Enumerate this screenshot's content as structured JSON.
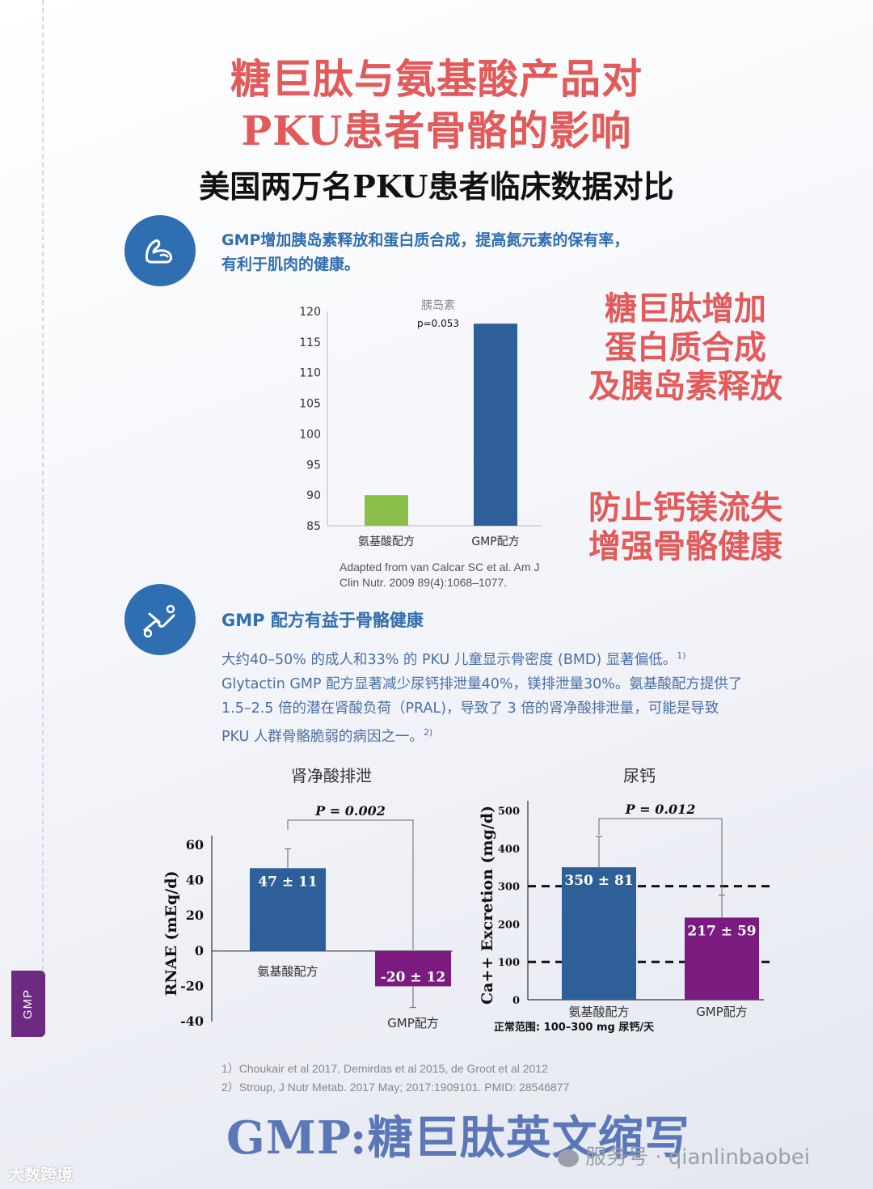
{
  "side_tab": {
    "label": "GMP"
  },
  "title": {
    "line1": "糖巨肽与氨基酸产品对",
    "line2": "PKU患者骨骼的影响"
  },
  "subtitle": "美国两万名PKU患者临床数据对比",
  "section1": {
    "icon": "muscle-arm-icon",
    "text_line1": "GMP增加胰岛素释放和蛋白质合成，提高氮元素的保有率，",
    "text_line2": "有利于肌肉的健康。"
  },
  "callout1": {
    "line1": "糖巨肽增加",
    "line2": "蛋白质合成",
    "line3": "及胰岛素释放"
  },
  "callout2": {
    "line1": "防止钙镁流失",
    "line2": "增强骨骼健康"
  },
  "citation": {
    "line1": "Adapted from van Calcar SC et al.  Am J",
    "line2": "Clin Nutr. 2009 89(4):1068–1077."
  },
  "section2": {
    "icon": "joint-bone-icon",
    "heading": "GMP 配方有益于骨骼健康",
    "para_line1": "大约40–50% 的成人和33% 的 PKU 儿童显示骨密度 (BMD) 显著偏低。",
    "para_sup1": "1)",
    "para_line2": "Glytactin GMP  配方显著减少尿钙排泄量40%，镁排泄量30%。氨基酸配方提供了",
    "para_line3": "1.5–2.5  倍的潜在肾酸负荷（PRAL)，导致了 3  倍的肾净酸排泄量，可能是导致",
    "para_line4": "PKU 人群骨骼脆弱的病因之一。",
    "para_sup2": "2)"
  },
  "refs": {
    "line1": "1）Choukair et al 2017, Demirdas et al 2015, de Groot et al 2012",
    "line2": "2）Stroup, J Nutr Metab. 2017 May; 2017:1909101. PMID: 28546877"
  },
  "footer_title": "GMP:糖巨肽英文缩写",
  "watermark": {
    "left": "大数跨境",
    "right": "服务号 · qianlinbaobei"
  },
  "colors": {
    "blue": "#2f5f98",
    "green": "#8cbf4a",
    "purple": "#7b1b80",
    "red": "#e25a5a"
  },
  "chart_data": [
    {
      "type": "bar",
      "title": "胰岛素",
      "annotation": "p=0.053",
      "categories": [
        "氨基酸配方",
        "GMP配方"
      ],
      "values": [
        90,
        118
      ],
      "ylim": [
        85,
        120
      ],
      "yticks": [
        85,
        90,
        95,
        100,
        105,
        110,
        115,
        120
      ],
      "colors": [
        "#8cbf4a",
        "#2f5f98"
      ]
    },
    {
      "type": "bar",
      "title": "肾净酸排泄",
      "ylabel": "RNAE (mEq/d)",
      "annotation": "P = 0.002",
      "categories": [
        "氨基酸配方",
        "GMP配方"
      ],
      "values": [
        47,
        -20
      ],
      "errors": [
        11,
        12
      ],
      "labels": [
        "47 ± 11",
        "-20 ± 12"
      ],
      "ylim": [
        -40,
        60
      ],
      "yticks": [
        -40,
        -20,
        0,
        20,
        40,
        60
      ],
      "colors": [
        "#2f5f98",
        "#7b1b80"
      ]
    },
    {
      "type": "bar",
      "title": "尿钙",
      "ylabel": "Ca++ Excretion (mg/d)",
      "annotation": "P = 0.012",
      "categories": [
        "氨基酸配方",
        "GMP配方"
      ],
      "values": [
        350,
        217
      ],
      "errors": [
        81,
        59
      ],
      "labels": [
        "350 ± 81",
        "217 ± 59"
      ],
      "ylim": [
        0,
        500
      ],
      "yticks": [
        0,
        100,
        200,
        300,
        400,
        500
      ],
      "reference_lines": [
        100,
        300
      ],
      "note": "正常范围: 100–300 mg 尿钙/天",
      "colors": [
        "#2f5f98",
        "#7b1b80"
      ]
    }
  ]
}
